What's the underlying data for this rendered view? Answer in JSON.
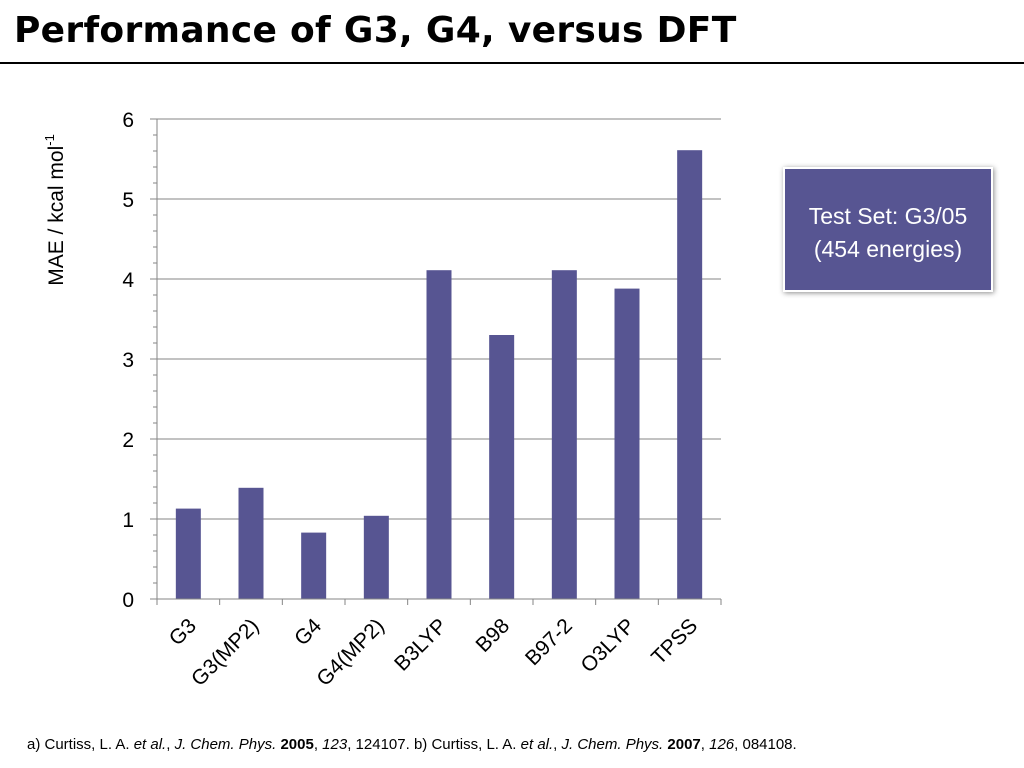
{
  "slide": {
    "title": "Performance of G3, G4, versus DFT"
  },
  "info_box": {
    "line1": "Test Set: G3/05",
    "line2": "(454 energies)"
  },
  "citation": {
    "a_prefix": "a) Curtiss, L. A. ",
    "a_etal": "et al.",
    "a_sep": ", ",
    "a_journal": "J. Chem. Phys.",
    "a_sp1": " ",
    "a_year": "2005",
    "a_sep2": ", ",
    "a_volume": "123",
    "a_pages": ", 124107. ",
    "b_prefix": "b) Curtiss, L. A. ",
    "b_etal": "et al.",
    "b_sep": ", ",
    "b_journal": "J. Chem. Phys.",
    "b_sp1": " ",
    "b_year": "2007",
    "b_sep2": ", ",
    "b_volume": "126",
    "b_pages": ", 084108."
  },
  "chart_data": {
    "type": "bar",
    "title": "",
    "xlabel": "",
    "ylabel": "MAE / kcal mol",
    "ylabel_superscript": "-1",
    "categories": [
      "G3",
      "G3(MP2)",
      "G4",
      "G4(MP2)",
      "B3LYP",
      "B98",
      "B97-2",
      "O3LYP",
      "TPSS"
    ],
    "values": [
      1.13,
      1.39,
      0.83,
      1.04,
      4.11,
      3.3,
      4.11,
      3.88,
      5.61
    ],
    "ylim": [
      0,
      6
    ],
    "yticks": [
      "0",
      "1",
      "2",
      "3",
      "4",
      "5",
      "6"
    ],
    "grid": true,
    "bar_color": "#575592",
    "grid_color": "#868686"
  }
}
